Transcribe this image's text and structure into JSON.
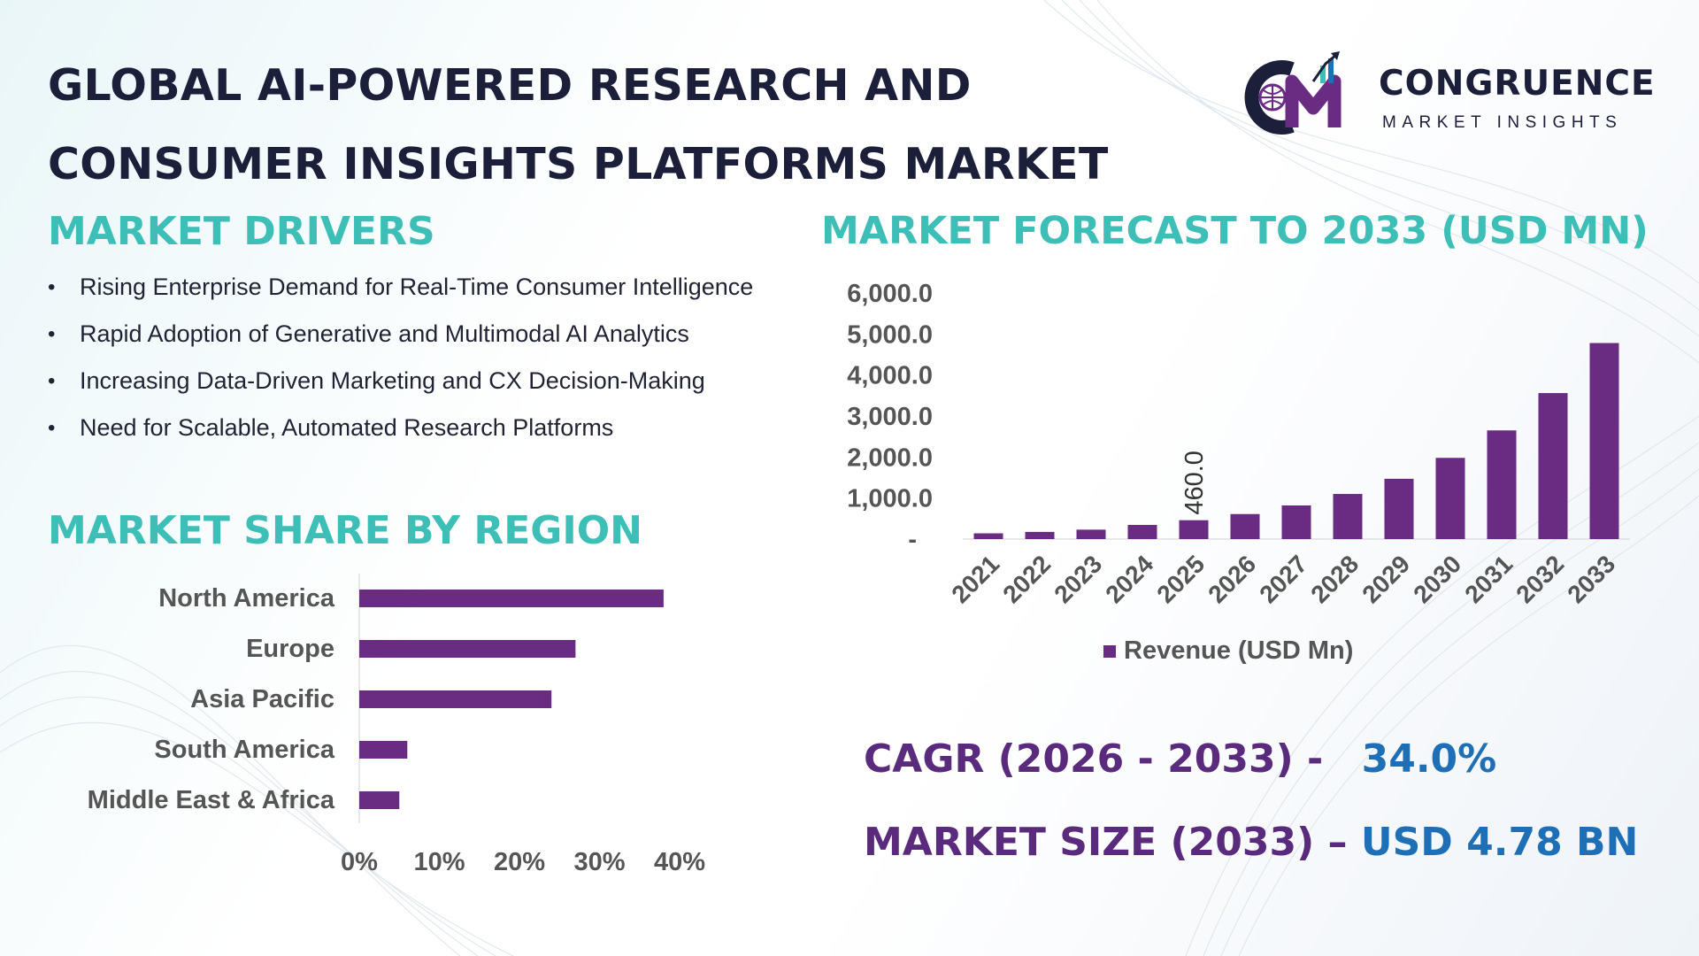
{
  "title": {
    "line1": "GLOBAL AI-POWERED RESEARCH AND",
    "line2": "CONSUMER INSIGHTS PLATFORMS MARKET"
  },
  "logo": {
    "name": "CONGRUENCE",
    "tagline": "MARKET INSIGHTS",
    "initials": "CM"
  },
  "drivers": {
    "heading": "MARKET DRIVERS",
    "items": [
      "Rising Enterprise Demand for Real-Time Consumer Intelligence",
      "Rapid Adoption of Generative and Multimodal AI Analytics",
      "Increasing Data-Driven Marketing and CX Decision-Making",
      "Need for Scalable, Automated Research Platforms"
    ]
  },
  "region": {
    "heading": "MARKET SHARE BY REGION"
  },
  "forecast": {
    "heading": "MARKET FORECAST TO 2033 (USD MN)"
  },
  "stats": {
    "cagr_label": "CAGR (2026 - 2033) -",
    "cagr_value": "34.0%",
    "size_label": "MARKET SIZE (2033) –",
    "size_value": "USD 4.78 BN"
  },
  "colors": {
    "bar": "#6a2c83",
    "heading": "#3dbfb7",
    "stat_label": "#5a2a7c",
    "stat_value": "#1f6fb6"
  },
  "chart_data": [
    {
      "type": "bar",
      "orientation": "horizontal",
      "categories": [
        "North America",
        "Europe",
        "Asia Pacific",
        "South America",
        "Middle East & Africa"
      ],
      "values": [
        38,
        27,
        24,
        6,
        5
      ],
      "xlim": [
        0,
        40
      ],
      "xticks": [
        "0%",
        "10%",
        "20%",
        "30%",
        "40%"
      ],
      "grid": false
    },
    {
      "type": "bar",
      "categories": [
        "2021",
        "2022",
        "2023",
        "2024",
        "2025",
        "2026",
        "2027",
        "2028",
        "2029",
        "2030",
        "2031",
        "2032",
        "2033"
      ],
      "series": [
        {
          "name": "Revenue (USD Mn)",
          "values": [
            140,
            175,
            230,
            345,
            460,
            610,
            820,
            1100,
            1470,
            1980,
            2650,
            3560,
            4780
          ]
        }
      ],
      "ylim": [
        0,
        6000
      ],
      "yticks": [
        "-",
        "1,000.0",
        "2,000.0",
        "3,000.0",
        "4,000.0",
        "5,000.0",
        "6,000.0"
      ],
      "data_labels": [
        {
          "category": "2025",
          "text": "460.0"
        }
      ],
      "legend": "bottom",
      "grid": false
    }
  ]
}
